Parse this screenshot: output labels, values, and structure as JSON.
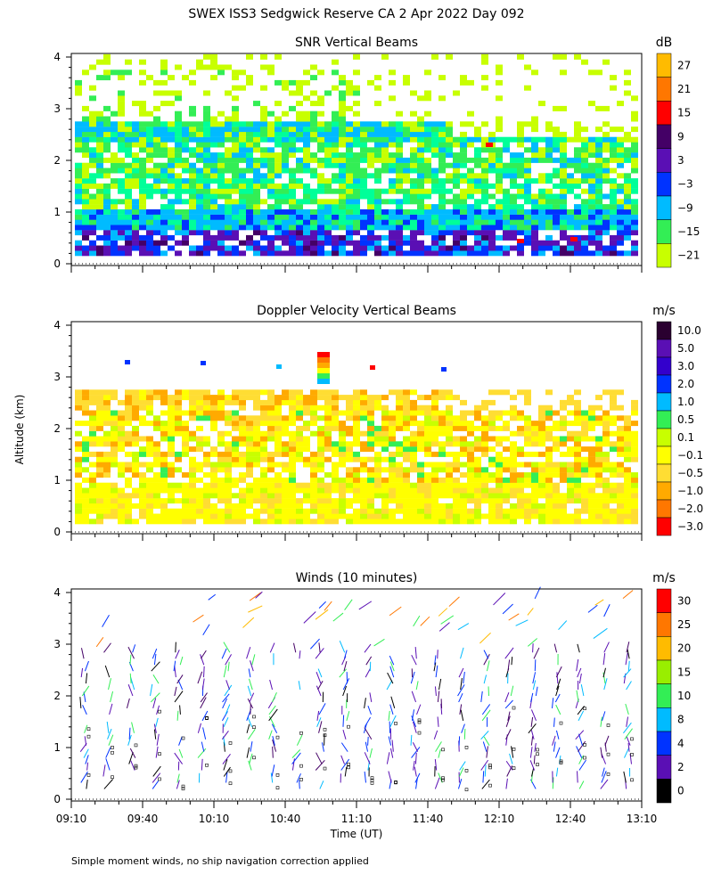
{
  "page": {
    "title": "SWEX ISS3 Sedgwick Reserve CA    2 Apr 2022 Day 092",
    "ylabel": "Altitude (km)",
    "xlabel": "Time (UT)",
    "footnote": "Simple moment winds, no ship navigation correction applied"
  },
  "colors": {
    "white": "#ffffff",
    "lime": "#c8ff00",
    "yellow": "#ffff00",
    "green": "#33ee55",
    "teal": "#00ff99",
    "sky": "#00bbff",
    "blue": "#0033ff",
    "violet": "#5a0fb4",
    "purple": "#440066",
    "dark": "#2a0030",
    "red": "#ff0000",
    "orange": "#ff7700",
    "gold": "#ffbb00",
    "black": "#000000"
  },
  "chart_data": [
    {
      "type": "heatmap",
      "title": "SNR Vertical Beams",
      "units": "dB",
      "colorbar": {
        "ticks": [
          "27",
          "21",
          "15",
          "9",
          "3",
          "−3",
          "−9",
          "−15",
          "−21"
        ],
        "colors": [
          "#ffbb00",
          "#ff7700",
          "#ff0000",
          "#440066",
          "#5a0fb4",
          "#0033ff",
          "#00bbff",
          "#33ee55",
          "#c8ff00"
        ]
      },
      "y_ticks": [
        "0",
        "1",
        "2",
        "3",
        "4"
      ],
      "ylim": [
        0,
        4
      ],
      "xlim": [
        "09:10",
        "13:10"
      ],
      "grid": false
    },
    {
      "type": "heatmap",
      "title": "Doppler Velocity Vertical Beams",
      "units": "m/s",
      "colorbar": {
        "ticks": [
          "10.0",
          "5.0",
          "3.0",
          "2.0",
          "1.0",
          "0.5",
          "0.1",
          "−0.1",
          "−0.5",
          "−1.0",
          "−2.0",
          "−3.0"
        ],
        "colors": [
          "#2a0030",
          "#5a0fb4",
          "#3300cc",
          "#0033ff",
          "#00bbff",
          "#33ee55",
          "#c8ff00",
          "#ffff00",
          "#ffdd33",
          "#ffaa00",
          "#ff7700",
          "#ff0000"
        ]
      },
      "y_ticks": [
        "0",
        "1",
        "2",
        "3",
        "4"
      ],
      "ylim": [
        0,
        4
      ],
      "xlim": [
        "09:10",
        "13:10"
      ],
      "grid": false
    },
    {
      "type": "scatter",
      "title": "Winds (10 minutes)",
      "units": "m/s",
      "colorbar": {
        "ticks": [
          "30",
          "25",
          "20",
          "15",
          "10",
          "8",
          "4",
          "2",
          "0"
        ],
        "colors": [
          "#ff0000",
          "#ff7700",
          "#ffbb00",
          "#99ee00",
          "#33ee55",
          "#00bbff",
          "#0033ff",
          "#5a0fb4",
          "#000000"
        ]
      },
      "y_ticks": [
        "0",
        "1",
        "2",
        "3",
        "4"
      ],
      "x_ticks": [
        "09:10",
        "09:40",
        "10:10",
        "10:40",
        "11:10",
        "11:40",
        "12:10",
        "12:40",
        "13:10"
      ],
      "ylim": [
        0,
        4
      ],
      "xlim": [
        "09:10",
        "13:10"
      ],
      "grid": false
    }
  ]
}
